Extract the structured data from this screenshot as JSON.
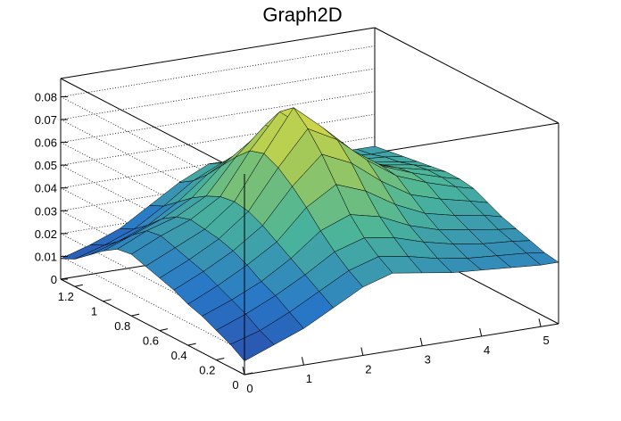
{
  "chart_data": {
    "type": "surface",
    "title": "Graph2D",
    "xlabel": "",
    "ylabel": "",
    "zlabel": "",
    "xlim": [
      0,
      5.3
    ],
    "ylim": [
      0,
      1.3
    ],
    "zlim": [
      0,
      0.088
    ],
    "x_ticks": [
      "0",
      "1",
      "2",
      "3",
      "4",
      "5"
    ],
    "y_ticks": [
      "0",
      "0.2",
      "0.4",
      "0.6",
      "0.8",
      "1",
      "1.2"
    ],
    "z_ticks": [
      "0",
      "0.01",
      "0.02",
      "0.03",
      "0.04",
      "0.05",
      "0.06",
      "0.07",
      "0.08"
    ],
    "x_tick_values": [
      0,
      1,
      2,
      3,
      4,
      5
    ],
    "y_tick_values": [
      0,
      0.2,
      0.4,
      0.6,
      0.8,
      1.0,
      1.2
    ],
    "z_tick_values": [
      0,
      0.01,
      0.02,
      0.03,
      0.04,
      0.05,
      0.06,
      0.07,
      0.08
    ],
    "grid": true,
    "colormap": "viridis-like (blue to yellow)",
    "colors": {
      "low": "#2c3fa0",
      "mid": "#4bb59a",
      "high": "#f5e13a",
      "grid_lines": "#000000",
      "frame": "#000000"
    },
    "surface_x": [
      0,
      0.5,
      1.0,
      1.5,
      2.0,
      2.5,
      3.0,
      3.5,
      4.0,
      4.5,
      5.0,
      5.3
    ],
    "surface_y": [
      0,
      0.1,
      0.2,
      0.3,
      0.4,
      0.5,
      0.6,
      0.7,
      0.8,
      0.9,
      1.0,
      1.1,
      1.2,
      1.3
    ],
    "surface_z": [
      [
        0.006,
        0.011,
        0.016,
        0.023,
        0.03,
        0.034,
        0.032,
        0.03,
        0.029,
        0.028,
        0.027,
        0.027
      ],
      [
        0.01,
        0.014,
        0.02,
        0.027,
        0.034,
        0.038,
        0.036,
        0.033,
        0.031,
        0.03,
        0.029,
        0.028
      ],
      [
        0.013,
        0.018,
        0.024,
        0.031,
        0.039,
        0.043,
        0.041,
        0.037,
        0.034,
        0.032,
        0.031,
        0.03
      ],
      [
        0.016,
        0.021,
        0.027,
        0.035,
        0.045,
        0.05,
        0.047,
        0.041,
        0.037,
        0.035,
        0.033,
        0.032
      ],
      [
        0.018,
        0.024,
        0.031,
        0.039,
        0.052,
        0.06,
        0.055,
        0.047,
        0.041,
        0.038,
        0.036,
        0.034
      ],
      [
        0.021,
        0.027,
        0.034,
        0.043,
        0.058,
        0.07,
        0.064,
        0.054,
        0.046,
        0.042,
        0.039,
        0.037
      ],
      [
        0.023,
        0.029,
        0.036,
        0.046,
        0.063,
        0.078,
        0.071,
        0.06,
        0.051,
        0.046,
        0.042,
        0.04
      ],
      [
        0.025,
        0.031,
        0.037,
        0.047,
        0.066,
        0.084,
        0.073,
        0.061,
        0.052,
        0.047,
        0.043,
        0.041
      ],
      [
        0.027,
        0.033,
        0.038,
        0.046,
        0.064,
        0.079,
        0.069,
        0.058,
        0.05,
        0.046,
        0.043,
        0.041
      ],
      [
        0.026,
        0.032,
        0.036,
        0.043,
        0.058,
        0.07,
        0.062,
        0.053,
        0.047,
        0.044,
        0.042,
        0.04
      ],
      [
        0.022,
        0.027,
        0.032,
        0.039,
        0.051,
        0.06,
        0.055,
        0.048,
        0.044,
        0.042,
        0.04,
        0.039
      ],
      [
        0.017,
        0.021,
        0.026,
        0.034,
        0.044,
        0.051,
        0.048,
        0.043,
        0.041,
        0.04,
        0.039,
        0.038
      ],
      [
        0.012,
        0.016,
        0.021,
        0.029,
        0.038,
        0.044,
        0.042,
        0.039,
        0.038,
        0.038,
        0.037,
        0.037
      ],
      [
        0.009,
        0.013,
        0.018,
        0.026,
        0.034,
        0.04,
        0.039,
        0.037,
        0.036,
        0.036,
        0.036,
        0.036
      ]
    ]
  }
}
